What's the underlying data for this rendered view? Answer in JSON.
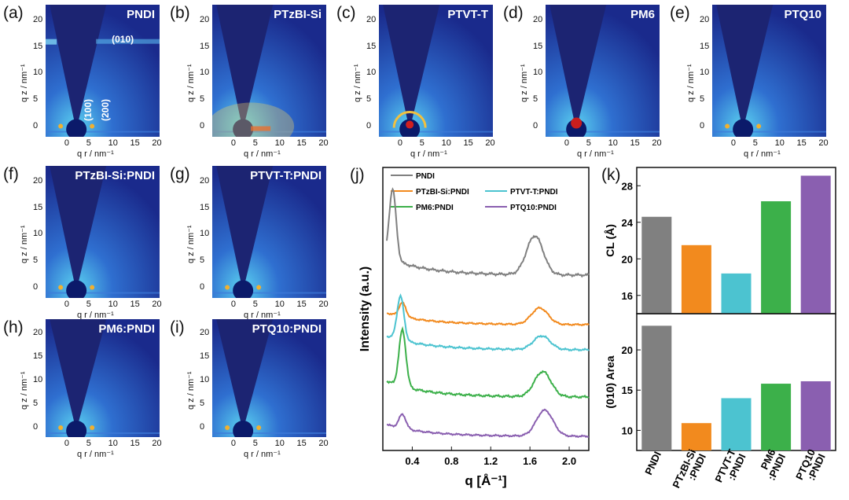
{
  "maps": [
    {
      "label": "(a)",
      "title": "PNDI",
      "annotations": [
        "(010)",
        "(100)",
        "(200)"
      ],
      "variant": "pndi"
    },
    {
      "label": "(b)",
      "title": "PTzBI-Si",
      "variant": "halo"
    },
    {
      "label": "(c)",
      "title": "PTVT-T",
      "variant": "ring"
    },
    {
      "label": "(d)",
      "title": "PM6",
      "variant": "dot"
    },
    {
      "label": "(e)",
      "title": "PTQ10",
      "variant": "plain"
    },
    {
      "label": "(f)",
      "title": "PTzBI-Si:PNDI",
      "variant": "blend"
    },
    {
      "label": "(g)",
      "title": "PTVT-T:PNDI",
      "variant": "blend"
    },
    {
      "label": "(h)",
      "title": "PM6:PNDI",
      "variant": "blend"
    },
    {
      "label": "(i)",
      "title": "PTQ10:PNDI",
      "variant": "blend"
    }
  ],
  "map_axes": {
    "xlabel": "q r / nm⁻¹",
    "ylabel": "q z / nm⁻¹",
    "xticks": [
      "0",
      "5",
      "10",
      "15",
      "20"
    ],
    "yticks": [
      "0",
      "5",
      "10",
      "15",
      "20"
    ]
  },
  "colors": {
    "map_bg": "#1a2a8c",
    "map_high": "#3aa0e8",
    "wedge": "#1c2472",
    "gray": "#808080",
    "orange": "#f28a1e",
    "cyan": "#4cc3d0",
    "green": "#3cb04a",
    "purple": "#8a5fb0"
  },
  "chart_data": [
    {
      "type": "line",
      "panel_label": "(j)",
      "xlabel": "q [Å⁻¹]",
      "ylabel": "Intensity (a.u.)",
      "xlim": [
        0.1,
        2.2
      ],
      "xticks": [
        "0.4",
        "0.8",
        "1.2",
        "1.6",
        "2.0"
      ],
      "legend_placement": "top",
      "series": [
        {
          "name": "PNDI",
          "color": "#808080",
          "peaks": [
            [
              0.2,
              1.0
            ],
            [
              1.65,
              0.55
            ]
          ]
        },
        {
          "name": "PTzBI-Si:PNDI",
          "color": "#f28a1e",
          "peaks": [
            [
              0.3,
              0.3
            ],
            [
              1.7,
              0.35
            ]
          ]
        },
        {
          "name": "PTVT-T:PNDI",
          "color": "#4cc3d0",
          "peaks": [
            [
              0.28,
              0.8
            ],
            [
              1.72,
              0.25
            ]
          ]
        },
        {
          "name": "PM6:PNDI",
          "color": "#3cb04a",
          "peaks": [
            [
              0.3,
              0.9
            ],
            [
              1.73,
              0.4
            ]
          ]
        },
        {
          "name": "PTQ10:PNDI",
          "color": "#8a5fb0",
          "peaks": [
            [
              0.3,
              0.3
            ],
            [
              1.75,
              0.55
            ]
          ]
        }
      ]
    },
    {
      "type": "bar",
      "panel_label": "(k)",
      "categories": [
        "PNDI",
        "PTzBI-Si :PNDI",
        "PTVT-T :PNDI",
        "PM6 :PNDI",
        "PTQ10 :PNDI"
      ],
      "colors": [
        "#808080",
        "#f28a1e",
        "#4cc3d0",
        "#3cb04a",
        "#8a5fb0"
      ],
      "top": {
        "ylabel": "CL (Å)",
        "values": [
          24.6,
          21.5,
          18.4,
          26.3,
          29.1
        ],
        "ylim": [
          14,
          30
        ],
        "yticks": [
          16,
          20,
          24,
          28
        ]
      },
      "bottom": {
        "ylabel": "(010) Area",
        "values": [
          23.0,
          10.9,
          14.0,
          15.8,
          16.1
        ],
        "ylim": [
          7.5,
          24.5
        ],
        "yticks": [
          10,
          15,
          20
        ]
      }
    }
  ]
}
